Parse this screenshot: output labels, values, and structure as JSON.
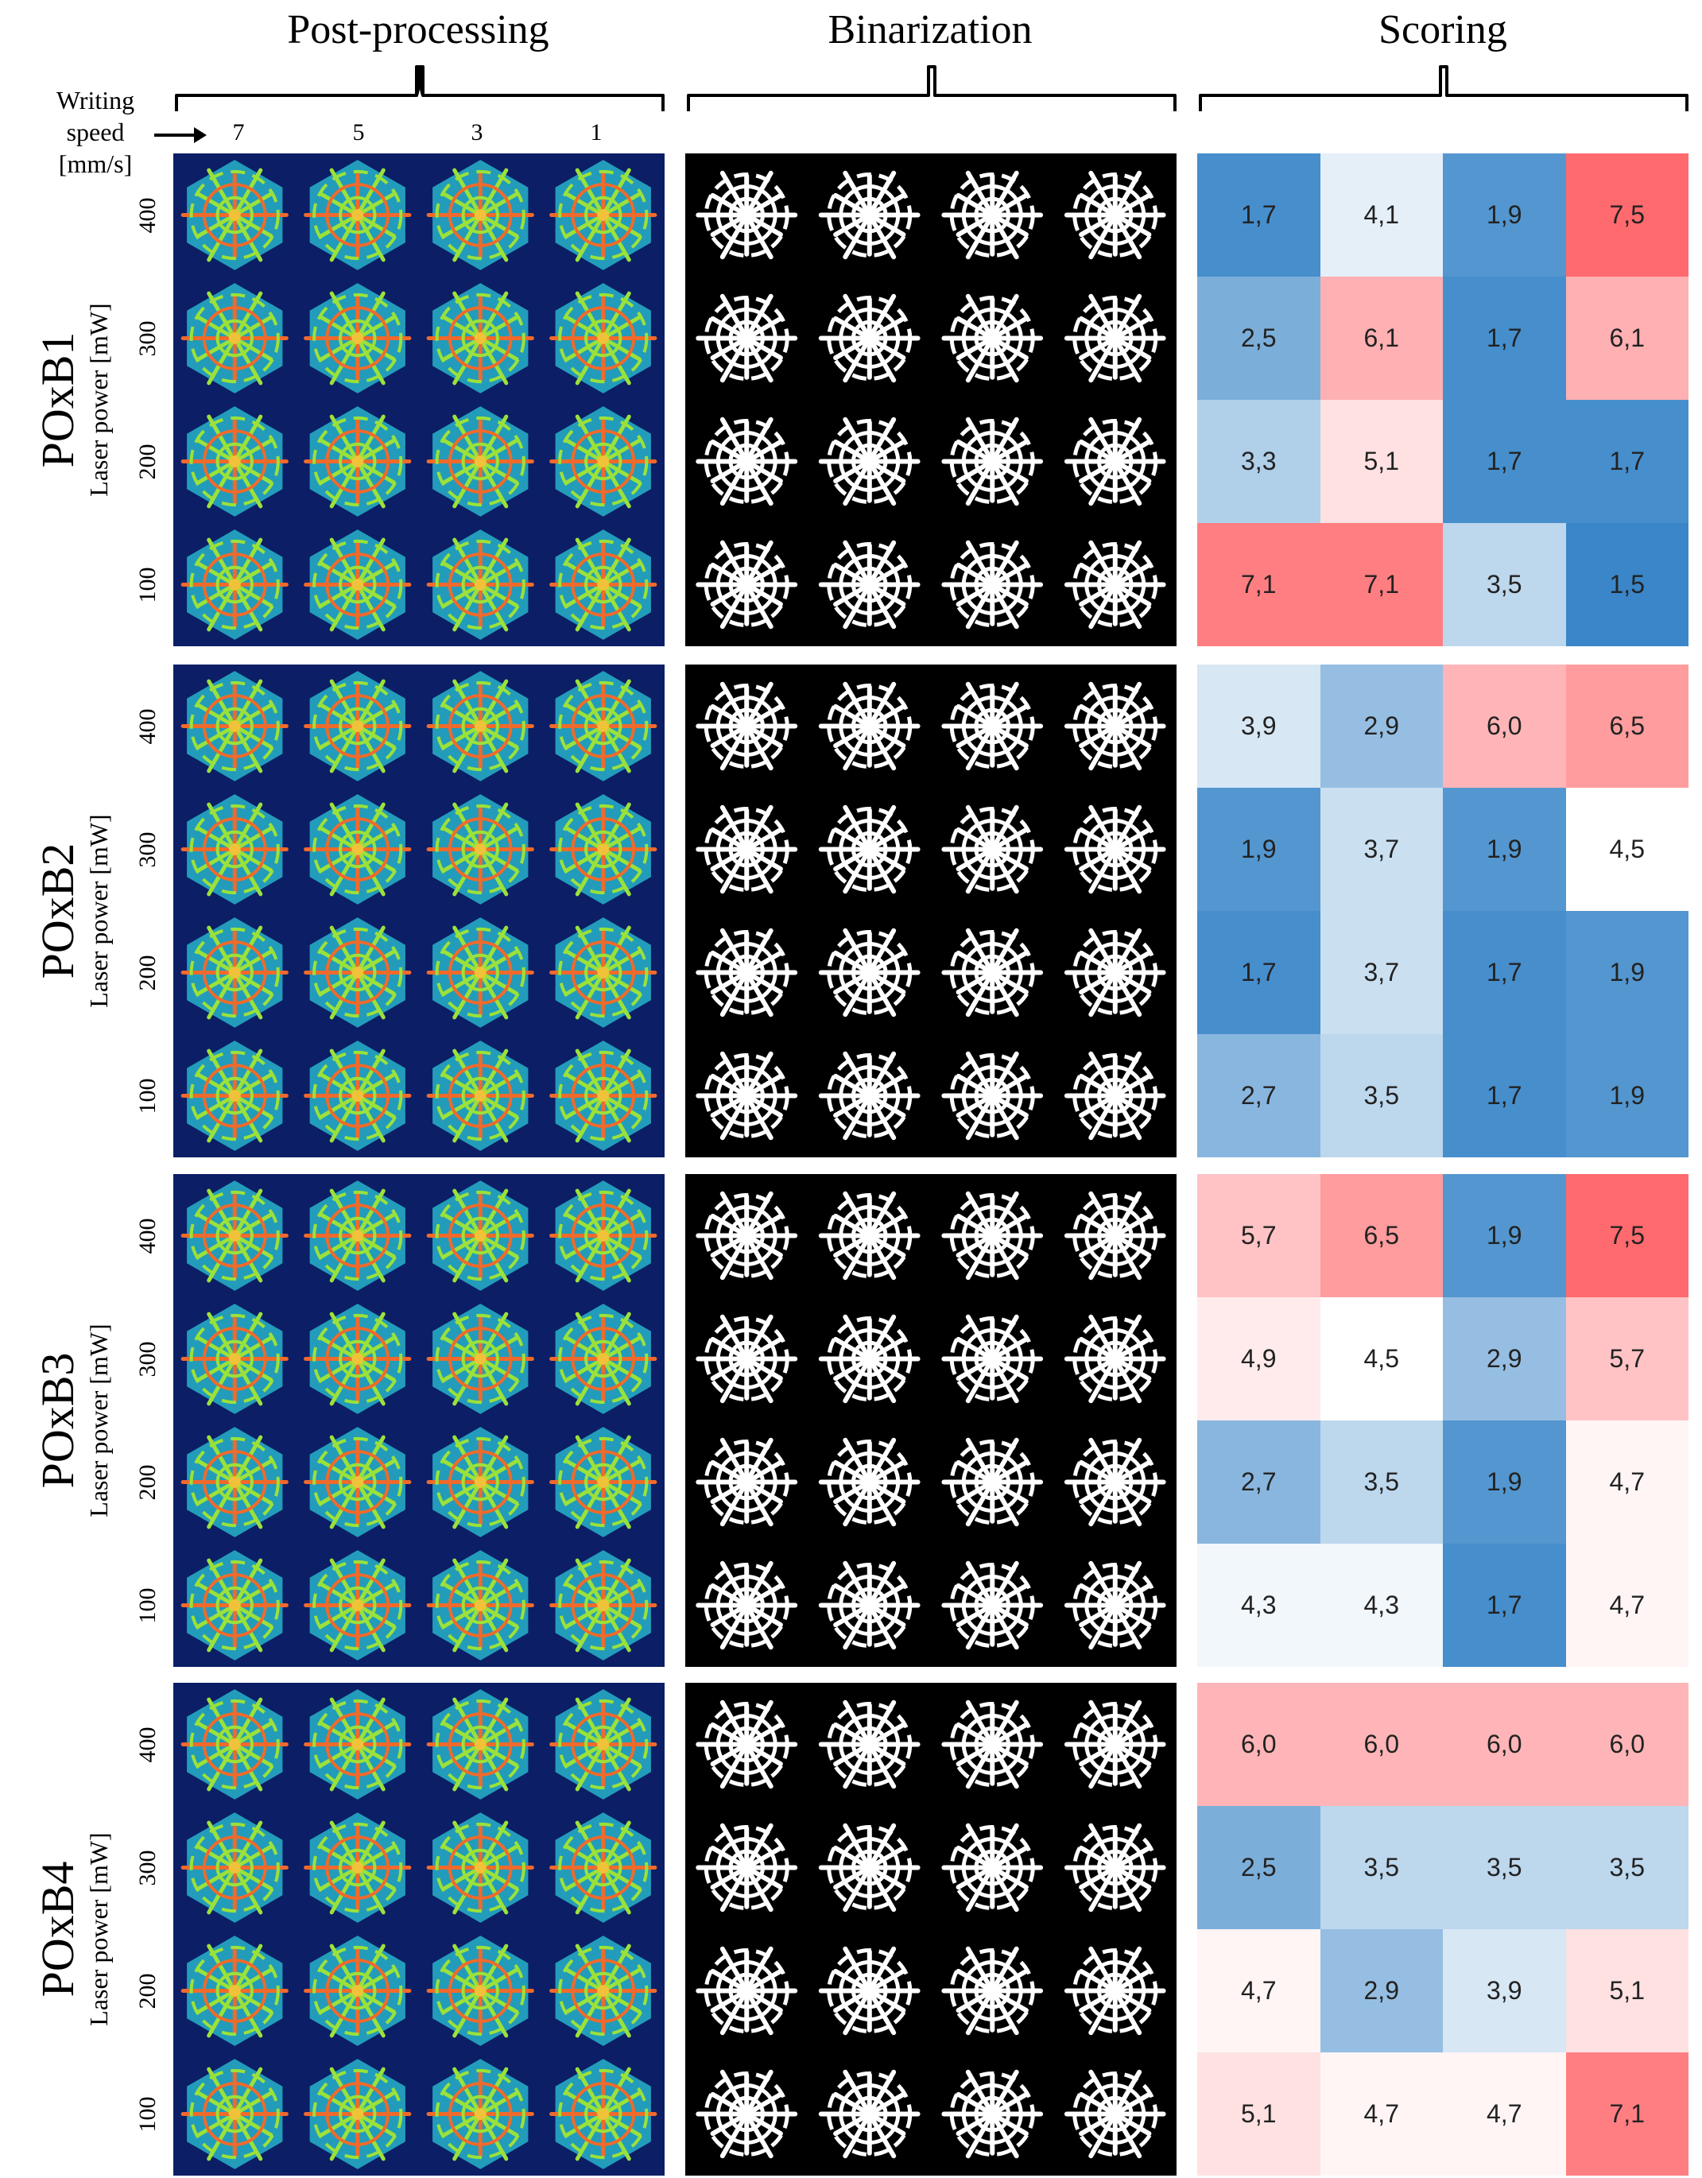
{
  "headers": {
    "post_processing": "Post-processing",
    "binarization": "Binarization",
    "scoring": "Scoring"
  },
  "writing_speed": {
    "label_line1": "Writing",
    "label_line2": "speed",
    "label_line3": "[mm/s]",
    "values": [
      "7",
      "5",
      "3",
      "1"
    ]
  },
  "y_axis_label": "Laser power [mW]",
  "power_ticks": [
    "400",
    "300",
    "200",
    "100"
  ],
  "groups": [
    {
      "name": "POxB1",
      "scores": [
        [
          "1,7",
          "4,1",
          "1,9",
          "7,5"
        ],
        [
          "2,5",
          "6,1",
          "1,7",
          "6,1"
        ],
        [
          "3,3",
          "5,1",
          "1,7",
          "1,7"
        ],
        [
          "7,1",
          "7,1",
          "3,5",
          "1,5"
        ]
      ]
    },
    {
      "name": "POxB2",
      "scores": [
        [
          "3,9",
          "2,9",
          "6,0",
          "6,5"
        ],
        [
          "1,9",
          "3,7",
          "1,9",
          "4,5"
        ],
        [
          "1,7",
          "3,7",
          "1,7",
          "1,9"
        ],
        [
          "2,7",
          "3,5",
          "1,7",
          "1,9"
        ]
      ]
    },
    {
      "name": "POxB3",
      "scores": [
        [
          "5,7",
          "6,5",
          "1,9",
          "7,5"
        ],
        [
          "4,9",
          "4,5",
          "2,9",
          "5,7"
        ],
        [
          "2,7",
          "3,5",
          "1,9",
          "4,7"
        ],
        [
          "4,3",
          "4,3",
          "1,7",
          "4,7"
        ]
      ]
    },
    {
      "name": "POxB4",
      "scores": [
        [
          "6,0",
          "6,0",
          "6,0",
          "6,0"
        ],
        [
          "2,5",
          "3,5",
          "3,5",
          "3,5"
        ],
        [
          "4,7",
          "2,9",
          "3,9",
          "5,1"
        ],
        [
          "5,1",
          "4,7",
          "4,7",
          "7,1"
        ]
      ]
    }
  ],
  "colors": {
    "score_low": "#3a86c8",
    "score_mid": "#ffffff",
    "score_high": "#ff6a6e"
  }
}
